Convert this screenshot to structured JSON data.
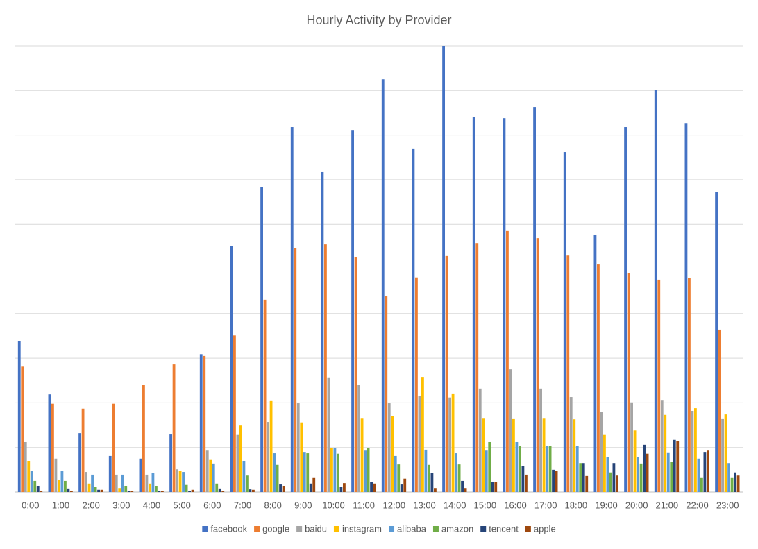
{
  "chart_data": {
    "type": "bar",
    "title": "Hourly Activity by Provider",
    "categories": [
      "0:00",
      "1:00",
      "2:00",
      "3:00",
      "4:00",
      "5:00",
      "6:00",
      "7:00",
      "8:00",
      "9:00",
      "10:00",
      "11:00",
      "12:00",
      "13:00",
      "14:00",
      "15:00",
      "16:00",
      "17:00",
      "18:00",
      "19:00",
      "20:00",
      "21:00",
      "22:00",
      "23:00"
    ],
    "series": [
      {
        "name": "facebook",
        "color": "#4472c4",
        "values": [
          3.39,
          2.19,
          1.32,
          0.81,
          0.75,
          1.29,
          3.09,
          5.51,
          6.84,
          8.18,
          7.17,
          8.1,
          9.25,
          7.7,
          10.0,
          8.41,
          8.38,
          8.63,
          7.62,
          5.77,
          8.18,
          9.02,
          8.27,
          6.72
        ]
      },
      {
        "name": "google",
        "color": "#ed7d31",
        "values": [
          2.81,
          1.98,
          1.87,
          1.98,
          2.4,
          2.86,
          3.05,
          3.51,
          4.31,
          5.47,
          5.55,
          5.27,
          4.4,
          4.81,
          5.29,
          5.58,
          5.85,
          5.69,
          5.3,
          5.1,
          4.91,
          4.76,
          4.79,
          3.64
        ]
      },
      {
        "name": "baidu",
        "color": "#a5a5a5",
        "values": [
          1.12,
          0.75,
          0.45,
          0.39,
          0.39,
          0.51,
          0.93,
          1.28,
          1.57,
          1.99,
          2.57,
          2.4,
          1.99,
          2.15,
          2.12,
          2.32,
          2.75,
          2.32,
          2.13,
          1.79,
          2.01,
          2.05,
          1.82,
          1.65
        ]
      },
      {
        "name": "instagram",
        "color": "#ffc000",
        "values": [
          0.7,
          0.28,
          0.19,
          0.09,
          0.19,
          0.48,
          0.72,
          1.49,
          2.04,
          1.56,
          0.98,
          1.66,
          1.7,
          2.58,
          2.21,
          1.66,
          1.65,
          1.66,
          1.63,
          1.28,
          1.38,
          1.73,
          1.88,
          1.74
        ]
      },
      {
        "name": "alibaba",
        "color": "#5b9bd5",
        "values": [
          0.48,
          0.47,
          0.39,
          0.39,
          0.42,
          0.45,
          0.64,
          0.7,
          0.87,
          0.9,
          0.98,
          0.93,
          0.81,
          0.95,
          0.87,
          0.93,
          1.12,
          1.03,
          1.03,
          0.79,
          0.79,
          0.89,
          0.75,
          0.65
        ]
      },
      {
        "name": "amazon",
        "color": "#70ad47",
        "values": [
          0.25,
          0.25,
          0.11,
          0.14,
          0.14,
          0.16,
          0.19,
          0.37,
          0.61,
          0.87,
          0.86,
          0.98,
          0.62,
          0.61,
          0.62,
          1.12,
          1.03,
          1.03,
          0.65,
          0.44,
          0.64,
          0.67,
          0.33,
          0.33
        ]
      },
      {
        "name": "tencent",
        "color": "#264478",
        "values": [
          0.14,
          0.08,
          0.05,
          0.03,
          0.02,
          0.02,
          0.08,
          0.06,
          0.17,
          0.19,
          0.12,
          0.22,
          0.17,
          0.42,
          0.25,
          0.23,
          0.58,
          0.5,
          0.65,
          0.65,
          1.06,
          1.17,
          0.9,
          0.44
        ]
      },
      {
        "name": "apple",
        "color": "#9e480e",
        "values": [
          0.03,
          0.03,
          0.05,
          0.03,
          0.02,
          0.05,
          0.03,
          0.05,
          0.14,
          0.33,
          0.2,
          0.19,
          0.3,
          0.09,
          0.09,
          0.23,
          0.39,
          0.48,
          0.36,
          0.37,
          0.86,
          1.15,
          0.93,
          0.37
        ]
      }
    ],
    "ylim": [
      0,
      10
    ],
    "gridlines": [
      0,
      1,
      2,
      3,
      4,
      5,
      6,
      7,
      8,
      9,
      10
    ],
    "grid": true,
    "legend": "bottom"
  }
}
